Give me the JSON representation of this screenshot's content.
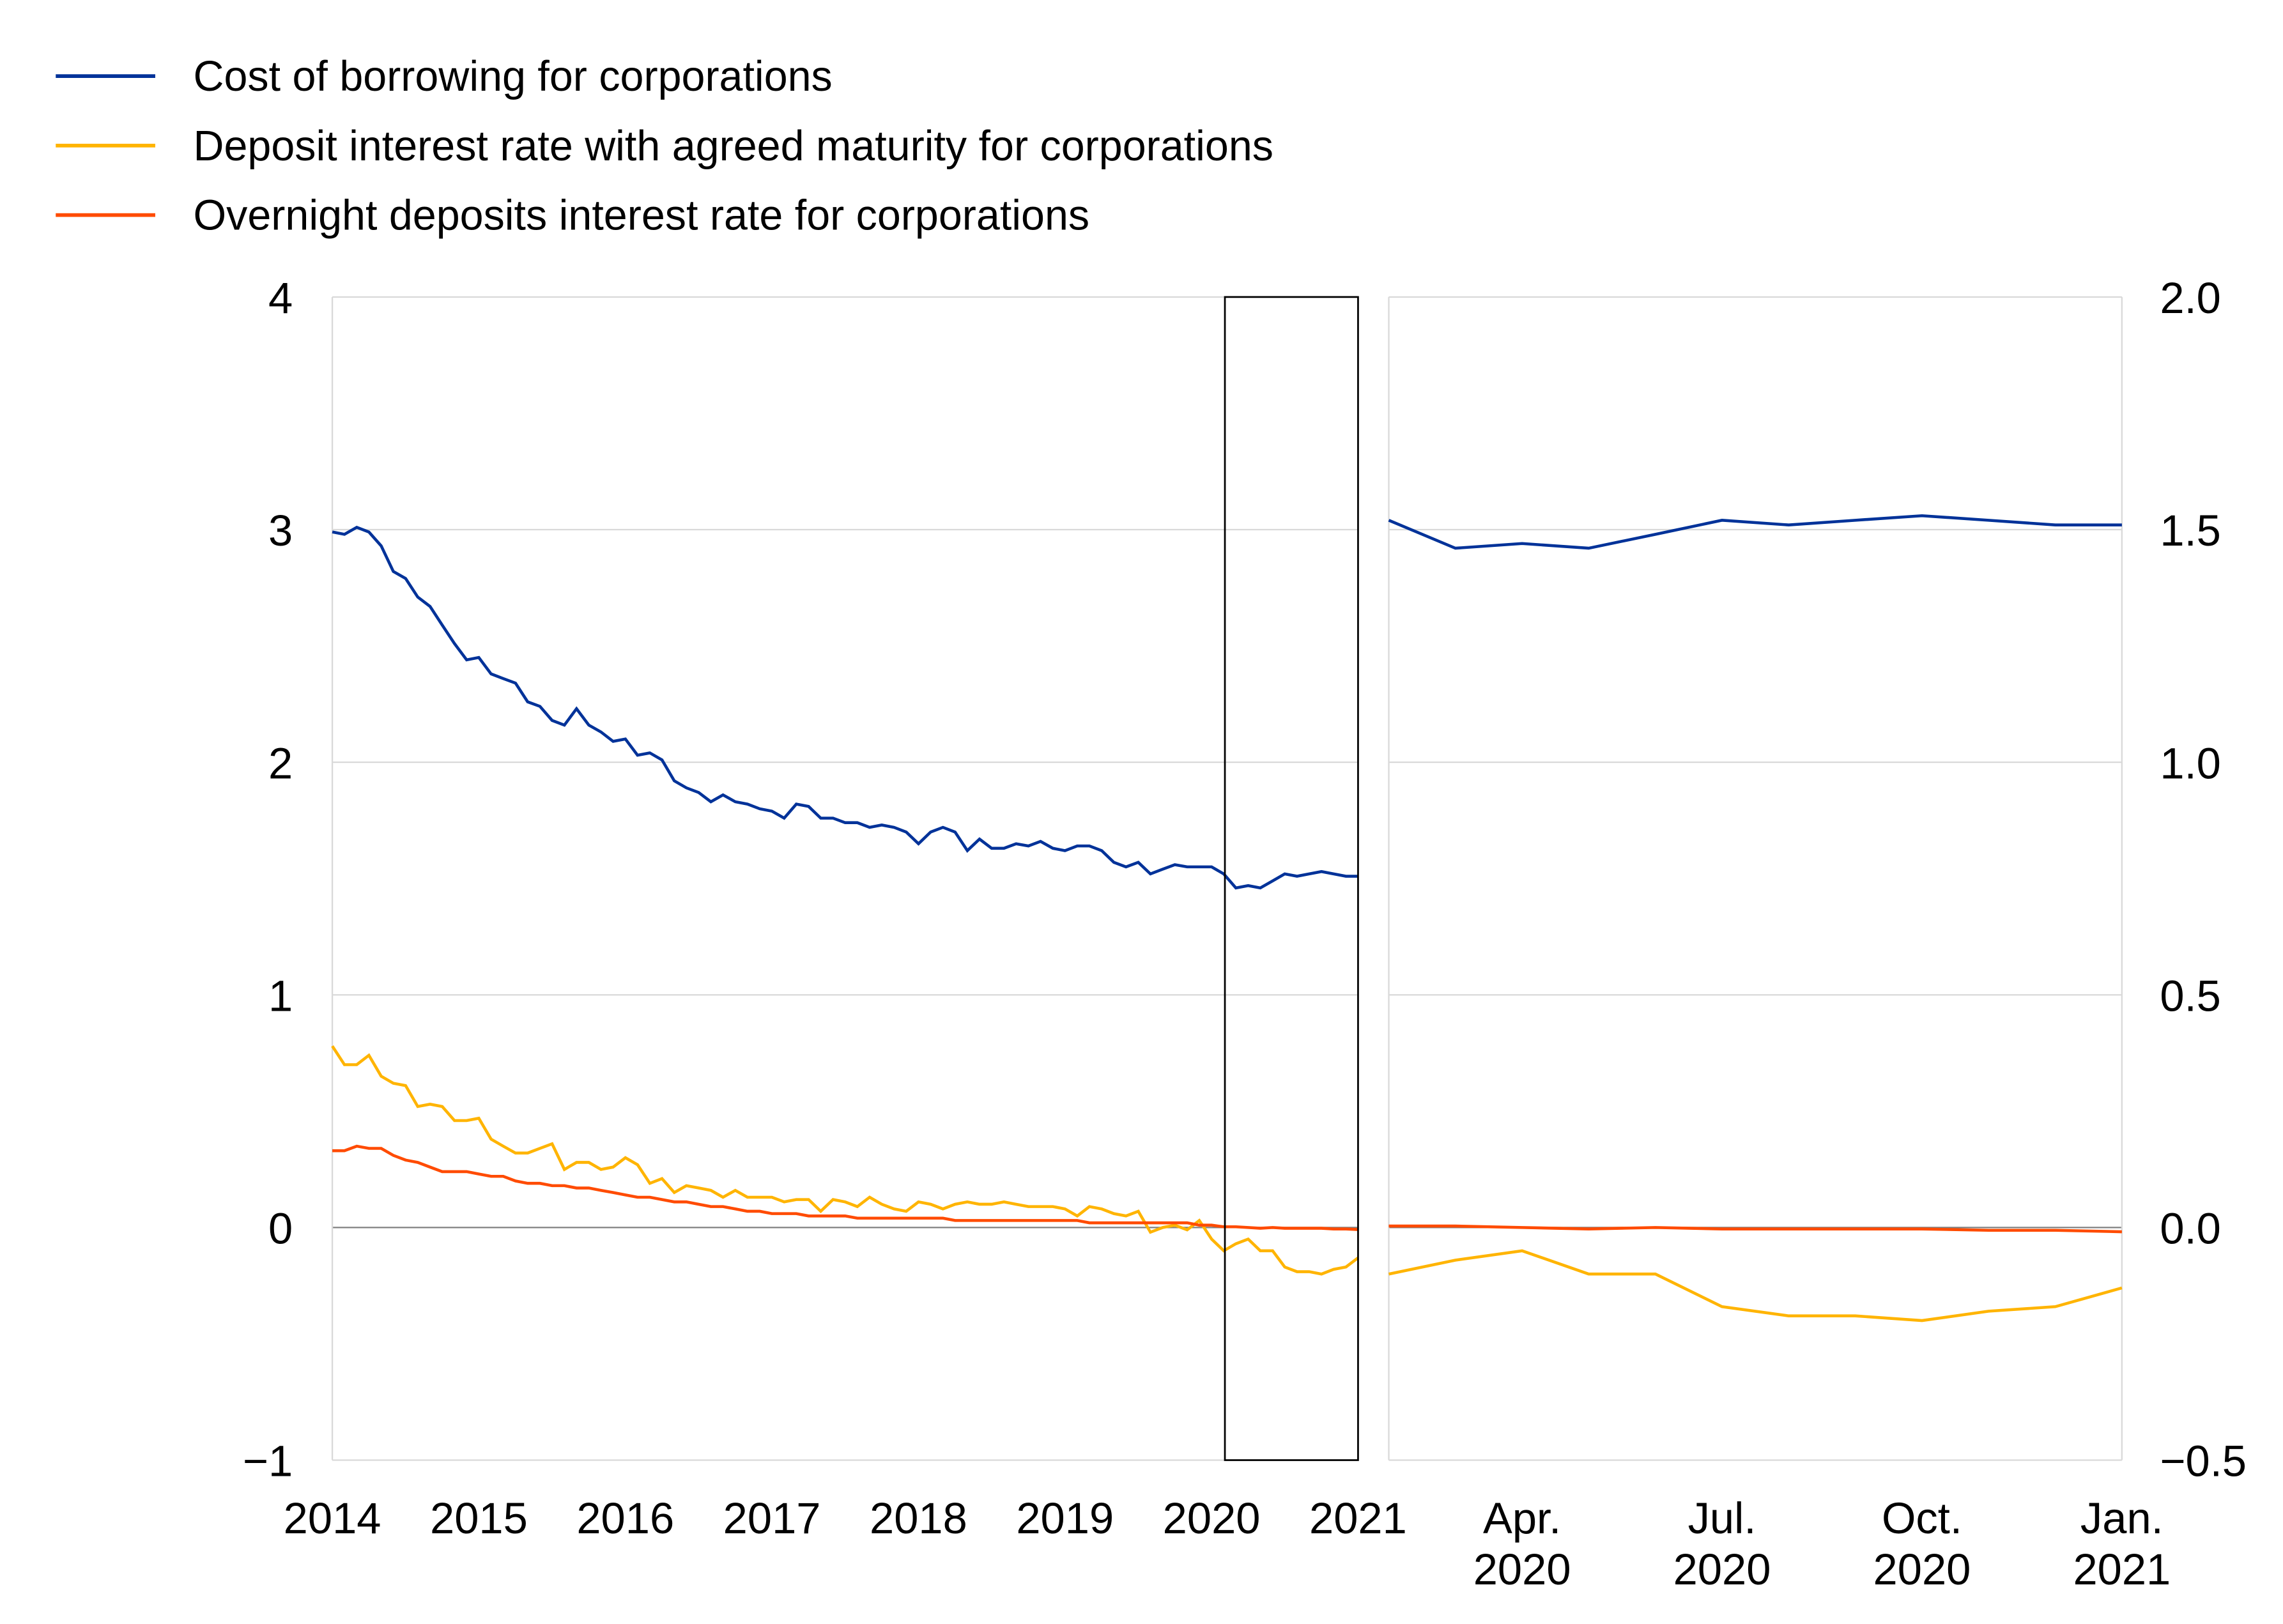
{
  "chart_data": [
    {
      "type": "line",
      "panel": "left",
      "x_start": "2014-01",
      "x_end": "2021-01",
      "frequency": "monthly",
      "x_tick_labels": [
        "2014",
        "2015",
        "2016",
        "2017",
        "2018",
        "2019",
        "2020",
        "2021"
      ],
      "y_tick_labels": [
        "4",
        "3",
        "2",
        "1",
        "0",
        "−1"
      ],
      "ylim": [
        -1,
        4
      ],
      "grid": true,
      "highlight_box": {
        "from": "2020-02",
        "to": "2021-01"
      },
      "legend_placement": "top-left"
    },
    {
      "type": "line",
      "panel": "right",
      "x_start": "2020-02",
      "x_end": "2021-01",
      "frequency": "monthly",
      "x_tick_labels": [
        [
          "Apr.",
          "2020"
        ],
        [
          "Jul.",
          "2020"
        ],
        [
          "Oct.",
          "2020"
        ],
        [
          "Jan.",
          "2021"
        ]
      ],
      "y_tick_labels": [
        "2.0",
        "1.5",
        "1.0",
        "0.5",
        "0.0",
        "−0.5"
      ],
      "ylim": [
        -0.5,
        2.0
      ],
      "grid": true
    }
  ],
  "series": [
    {
      "name": "Cost of borrowing for corporations",
      "color": "#003299",
      "values": [
        2.99,
        2.98,
        3.01,
        2.99,
        2.93,
        2.82,
        2.79,
        2.71,
        2.67,
        2.59,
        2.51,
        2.44,
        2.45,
        2.38,
        2.36,
        2.34,
        2.26,
        2.24,
        2.18,
        2.16,
        2.23,
        2.16,
        2.13,
        2.09,
        2.1,
        2.03,
        2.04,
        2.01,
        1.92,
        1.89,
        1.87,
        1.83,
        1.86,
        1.83,
        1.82,
        1.8,
        1.79,
        1.76,
        1.82,
        1.81,
        1.76,
        1.76,
        1.74,
        1.74,
        1.72,
        1.73,
        1.72,
        1.7,
        1.65,
        1.7,
        1.72,
        1.7,
        1.62,
        1.67,
        1.63,
        1.63,
        1.65,
        1.64,
        1.66,
        1.63,
        1.62,
        1.64,
        1.64,
        1.62,
        1.57,
        1.55,
        1.57,
        1.52,
        1.54,
        1.56,
        1.55,
        1.55,
        1.55,
        1.52,
        1.46,
        1.47,
        1.46,
        1.49,
        1.52,
        1.51,
        1.52,
        1.53,
        1.52,
        1.51,
        1.51
      ]
    },
    {
      "name": "Deposit interest rate with agreed maturity for corporations",
      "color": "#ffb400",
      "values": [
        0.78,
        0.7,
        0.7,
        0.74,
        0.65,
        0.62,
        0.61,
        0.52,
        0.53,
        0.52,
        0.46,
        0.46,
        0.47,
        0.38,
        0.35,
        0.32,
        0.32,
        0.34,
        0.36,
        0.25,
        0.28,
        0.28,
        0.25,
        0.26,
        0.3,
        0.27,
        0.19,
        0.21,
        0.15,
        0.18,
        0.17,
        0.16,
        0.13,
        0.16,
        0.13,
        0.13,
        0.13,
        0.11,
        0.12,
        0.12,
        0.07,
        0.12,
        0.11,
        0.09,
        0.13,
        0.1,
        0.08,
        0.07,
        0.11,
        0.1,
        0.08,
        0.1,
        0.11,
        0.1,
        0.1,
        0.11,
        0.1,
        0.09,
        0.09,
        0.09,
        0.08,
        0.05,
        0.09,
        0.08,
        0.06,
        0.05,
        0.07,
        -0.02,
        0.0,
        0.01,
        -0.01,
        0.03,
        -0.05,
        -0.1,
        -0.07,
        -0.05,
        -0.1,
        -0.1,
        -0.17,
        -0.19,
        -0.19,
        -0.2,
        -0.18,
        -0.17,
        -0.13
      ]
    },
    {
      "name": "Overnight deposits interest rate for corporations",
      "color": "#ff4b00",
      "values": [
        0.33,
        0.33,
        0.35,
        0.34,
        0.34,
        0.31,
        0.29,
        0.28,
        0.26,
        0.24,
        0.24,
        0.24,
        0.23,
        0.22,
        0.22,
        0.2,
        0.19,
        0.19,
        0.18,
        0.18,
        0.17,
        0.17,
        0.16,
        0.15,
        0.14,
        0.13,
        0.13,
        0.12,
        0.11,
        0.11,
        0.1,
        0.09,
        0.09,
        0.08,
        0.07,
        0.07,
        0.06,
        0.06,
        0.06,
        0.05,
        0.05,
        0.05,
        0.05,
        0.04,
        0.04,
        0.04,
        0.04,
        0.04,
        0.04,
        0.04,
        0.04,
        0.03,
        0.03,
        0.03,
        0.03,
        0.03,
        0.03,
        0.03,
        0.03,
        0.03,
        0.03,
        0.03,
        0.02,
        0.02,
        0.02,
        0.02,
        0.02,
        0.02,
        0.02,
        0.02,
        0.02,
        0.01,
        0.01,
        0.003,
        0.003,
        0.0,
        -0.003,
        0.0,
        -0.003,
        -0.003,
        -0.003,
        -0.003,
        -0.006,
        -0.006,
        -0.009
      ]
    }
  ]
}
